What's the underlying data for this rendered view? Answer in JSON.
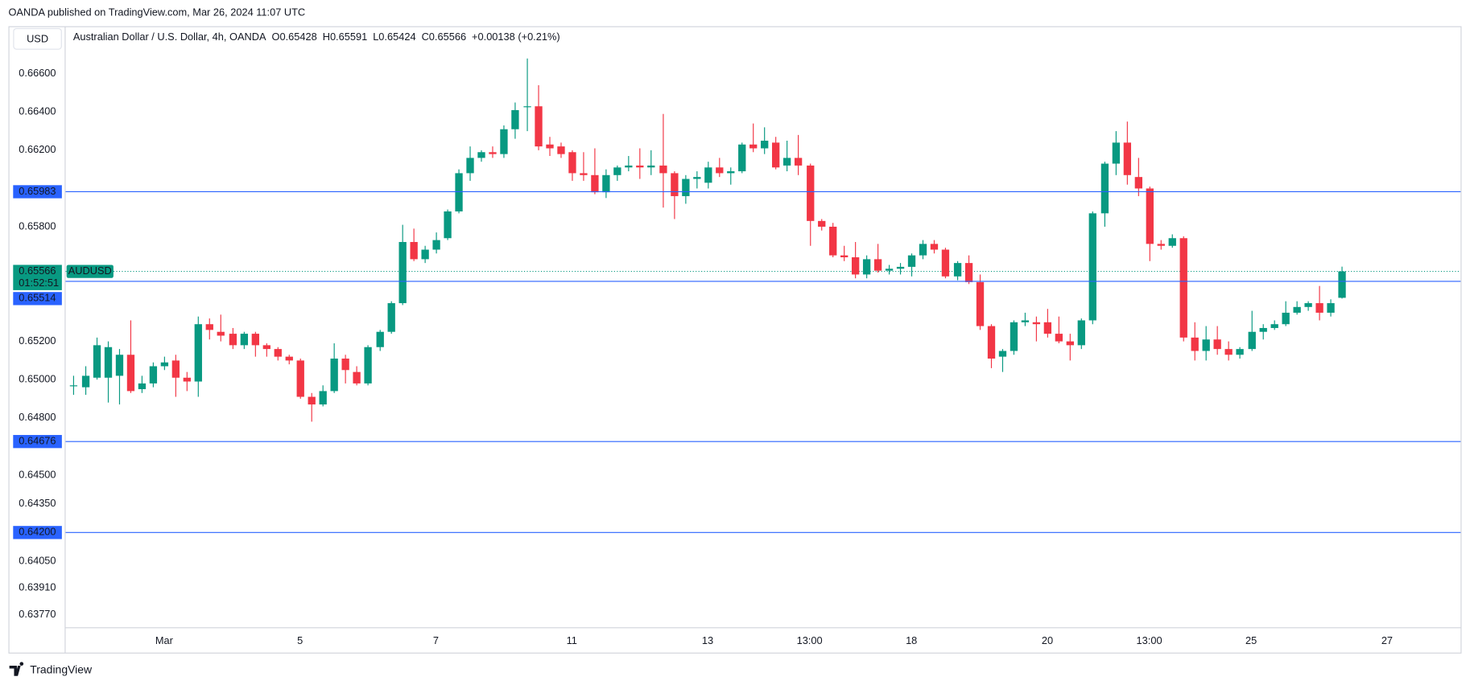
{
  "header": {
    "published": "OANDA published on TradingView.com, Mar 26, 2024 11:07 UTC"
  },
  "footer": {
    "brand": "TradingView"
  },
  "chart_data": {
    "type": "candlestick",
    "currency": "USD",
    "legend": {
      "symbol": "Australian Dollar / U.S. Dollar, 4h, OANDA",
      "open": "O0.65428",
      "high": "H0.65591",
      "low": "L0.65424",
      "close": "C0.65566",
      "change": "+0.00138 (+0.21%)"
    },
    "up_color": "#089981",
    "down_color": "#f23645",
    "series": {
      "open": [
        0.6497,
        0.6496,
        0.6501,
        0.6501,
        0.6502,
        0.6513,
        0.6495,
        0.6498,
        0.6507,
        0.651,
        0.6501,
        0.6499,
        0.6529,
        0.6525,
        0.6524,
        0.6518,
        0.6524,
        0.6518,
        0.6516,
        0.6512,
        0.651,
        0.6491,
        0.6487,
        0.6494,
        0.6511,
        0.6504,
        0.6498,
        0.6517,
        0.6525,
        0.654,
        0.6572,
        0.6563,
        0.6568,
        0.6574,
        0.6588,
        0.6608,
        0.6616,
        0.6619,
        0.6618,
        0.6631,
        0.6643,
        0.6643,
        0.6623,
        0.6622,
        0.6619,
        0.6608,
        0.6607,
        0.6598,
        0.6607,
        0.6611,
        0.6612,
        0.6611,
        0.6612,
        0.6608,
        0.6596,
        0.6605,
        0.6603,
        0.6611,
        0.6608,
        0.6609,
        0.6623,
        0.6621,
        0.6624,
        0.6612,
        0.6616,
        0.6612,
        0.6583,
        0.658,
        0.6565,
        0.6564,
        0.6555,
        0.6563,
        0.6557,
        0.6558,
        0.6559,
        0.6565,
        0.6571,
        0.6568,
        0.6554,
        0.6561,
        0.6551,
        0.6528,
        0.6512,
        0.6515,
        0.653,
        0.653,
        0.653,
        0.6524,
        0.652,
        0.6518,
        0.6531,
        0.6587,
        0.6613,
        0.6624,
        0.6606,
        0.66,
        0.6571,
        0.657,
        0.6574,
        0.6522,
        0.6515,
        0.6521,
        0.6516,
        0.6513,
        0.6516,
        0.6525,
        0.6527,
        0.6529,
        0.6535,
        0.6538,
        0.654,
        0.6535,
        0.65428
      ],
      "high": [
        0.6502,
        0.6507,
        0.6522,
        0.652,
        0.6516,
        0.6531,
        0.6502,
        0.6509,
        0.6512,
        0.6513,
        0.6504,
        0.6533,
        0.6532,
        0.6534,
        0.6527,
        0.6525,
        0.6525,
        0.6519,
        0.6517,
        0.6513,
        0.6511,
        0.6493,
        0.6497,
        0.6519,
        0.6513,
        0.6507,
        0.6518,
        0.6526,
        0.6541,
        0.6581,
        0.6579,
        0.657,
        0.6577,
        0.6589,
        0.661,
        0.6622,
        0.662,
        0.6622,
        0.6633,
        0.6645,
        0.6668,
        0.6654,
        0.6627,
        0.6624,
        0.662,
        0.6619,
        0.6621,
        0.661,
        0.6612,
        0.6617,
        0.6621,
        0.662,
        0.6639,
        0.6609,
        0.6607,
        0.6609,
        0.6614,
        0.6616,
        0.6611,
        0.6624,
        0.6634,
        0.6632,
        0.6627,
        0.6625,
        0.6628,
        0.6613,
        0.6584,
        0.6582,
        0.657,
        0.6572,
        0.6565,
        0.6571,
        0.656,
        0.6561,
        0.6566,
        0.6573,
        0.6573,
        0.6569,
        0.6562,
        0.6565,
        0.6555,
        0.6529,
        0.6516,
        0.6531,
        0.6535,
        0.6533,
        0.6537,
        0.6533,
        0.6524,
        0.6532,
        0.6588,
        0.6614,
        0.663,
        0.6635,
        0.6616,
        0.6601,
        0.6573,
        0.6576,
        0.6575,
        0.653,
        0.6528,
        0.6528,
        0.652,
        0.6517,
        0.6536,
        0.6529,
        0.6531,
        0.6541,
        0.6541,
        0.6541,
        0.6549,
        0.6542,
        0.65591
      ],
      "low": [
        0.6492,
        0.6492,
        0.65,
        0.6488,
        0.6487,
        0.6493,
        0.6493,
        0.6496,
        0.6505,
        0.6491,
        0.6494,
        0.6491,
        0.6521,
        0.652,
        0.6516,
        0.6516,
        0.6512,
        0.6512,
        0.651,
        0.6508,
        0.649,
        0.6478,
        0.6486,
        0.6493,
        0.6498,
        0.6497,
        0.6497,
        0.6515,
        0.6524,
        0.6539,
        0.6562,
        0.6561,
        0.6566,
        0.6573,
        0.6587,
        0.6604,
        0.6614,
        0.6616,
        0.6616,
        0.6626,
        0.663,
        0.662,
        0.6617,
        0.6616,
        0.6604,
        0.6604,
        0.6597,
        0.6595,
        0.6604,
        0.6609,
        0.6605,
        0.6607,
        0.659,
        0.6584,
        0.6592,
        0.66,
        0.66,
        0.6606,
        0.6602,
        0.6608,
        0.6619,
        0.6618,
        0.661,
        0.6609,
        0.6607,
        0.657,
        0.6578,
        0.6564,
        0.6562,
        0.6553,
        0.6553,
        0.6556,
        0.6555,
        0.6555,
        0.6554,
        0.6563,
        0.6566,
        0.6553,
        0.6552,
        0.655,
        0.6526,
        0.6506,
        0.6504,
        0.6513,
        0.6528,
        0.652,
        0.6522,
        0.6519,
        0.651,
        0.6516,
        0.6529,
        0.658,
        0.6607,
        0.6602,
        0.6596,
        0.6562,
        0.6568,
        0.6569,
        0.652,
        0.651,
        0.651,
        0.6513,
        0.651,
        0.6511,
        0.6515,
        0.6521,
        0.6526,
        0.6528,
        0.6534,
        0.6536,
        0.6531,
        0.6533,
        0.65424
      ],
      "close": [
        0.6497,
        0.6502,
        0.6518,
        0.6517,
        0.6513,
        0.6494,
        0.6498,
        0.6507,
        0.6509,
        0.6501,
        0.6499,
        0.6529,
        0.6526,
        0.6523,
        0.6518,
        0.6524,
        0.6518,
        0.6516,
        0.6512,
        0.651,
        0.6491,
        0.6487,
        0.6494,
        0.6511,
        0.6505,
        0.6498,
        0.6517,
        0.6525,
        0.654,
        0.6572,
        0.6563,
        0.6568,
        0.6573,
        0.6588,
        0.6608,
        0.6616,
        0.6619,
        0.6618,
        0.6631,
        0.6641,
        0.6643,
        0.6622,
        0.6621,
        0.6618,
        0.6608,
        0.6607,
        0.6598,
        0.6607,
        0.6611,
        0.6612,
        0.6611,
        0.6612,
        0.6608,
        0.6596,
        0.6605,
        0.6606,
        0.6611,
        0.6608,
        0.6609,
        0.6623,
        0.6621,
        0.6625,
        0.6611,
        0.6616,
        0.6612,
        0.6583,
        0.658,
        0.6565,
        0.6564,
        0.6555,
        0.6563,
        0.6557,
        0.6558,
        0.6559,
        0.6565,
        0.6571,
        0.6568,
        0.6554,
        0.6561,
        0.6551,
        0.6528,
        0.6511,
        0.6515,
        0.653,
        0.6531,
        0.6529,
        0.6524,
        0.652,
        0.6518,
        0.6531,
        0.6587,
        0.6613,
        0.6624,
        0.6607,
        0.66,
        0.6571,
        0.657,
        0.6574,
        0.6522,
        0.6515,
        0.6521,
        0.6516,
        0.6513,
        0.6516,
        0.6525,
        0.6527,
        0.6529,
        0.6535,
        0.6538,
        0.654,
        0.6535,
        0.654,
        0.65566
      ]
    },
    "xlim": [
      -0.7,
      122.5
    ],
    "xticks": [
      {
        "value": 8,
        "label": "Mar"
      },
      {
        "value": 20,
        "label": "5"
      },
      {
        "value": 32,
        "label": "7"
      },
      {
        "value": 44,
        "label": "11"
      },
      {
        "value": 56,
        "label": "13"
      },
      {
        "value": 65,
        "label": "13:00"
      },
      {
        "value": 74,
        "label": "18"
      },
      {
        "value": 86,
        "label": "20"
      },
      {
        "value": 95,
        "label": "13:00"
      },
      {
        "value": 104,
        "label": "25"
      },
      {
        "value": 116,
        "label": "27"
      }
    ],
    "ylim": [
      0.63704,
      0.66844
    ],
    "yticks": [
      {
        "value": 0.666,
        "label": "0.66600"
      },
      {
        "value": 0.664,
        "label": "0.66400"
      },
      {
        "value": 0.662,
        "label": "0.66200"
      },
      {
        "value": 0.658,
        "label": "0.65800"
      },
      {
        "value": 0.652,
        "label": "0.65200"
      },
      {
        "value": 0.65,
        "label": "0.65000"
      },
      {
        "value": 0.648,
        "label": "0.64800"
      },
      {
        "value": 0.645,
        "label": "0.64500"
      },
      {
        "value": 0.6435,
        "label": "0.64350"
      },
      {
        "value": 0.6405,
        "label": "0.64050"
      },
      {
        "value": 0.6391,
        "label": "0.63910"
      },
      {
        "value": 0.6377,
        "label": "0.63770"
      }
    ],
    "grid": false,
    "price_lines": {
      "color": "#2962ff",
      "levels": [
        0.65983,
        0.65514,
        0.64676,
        {
          "value": 0.642,
          "label": "0.64200"
        }
      ]
    },
    "current_price": {
      "value": 0.65566,
      "countdown": "01:52:51",
      "symbol": "AUDUSD",
      "color": "#089981"
    }
  }
}
